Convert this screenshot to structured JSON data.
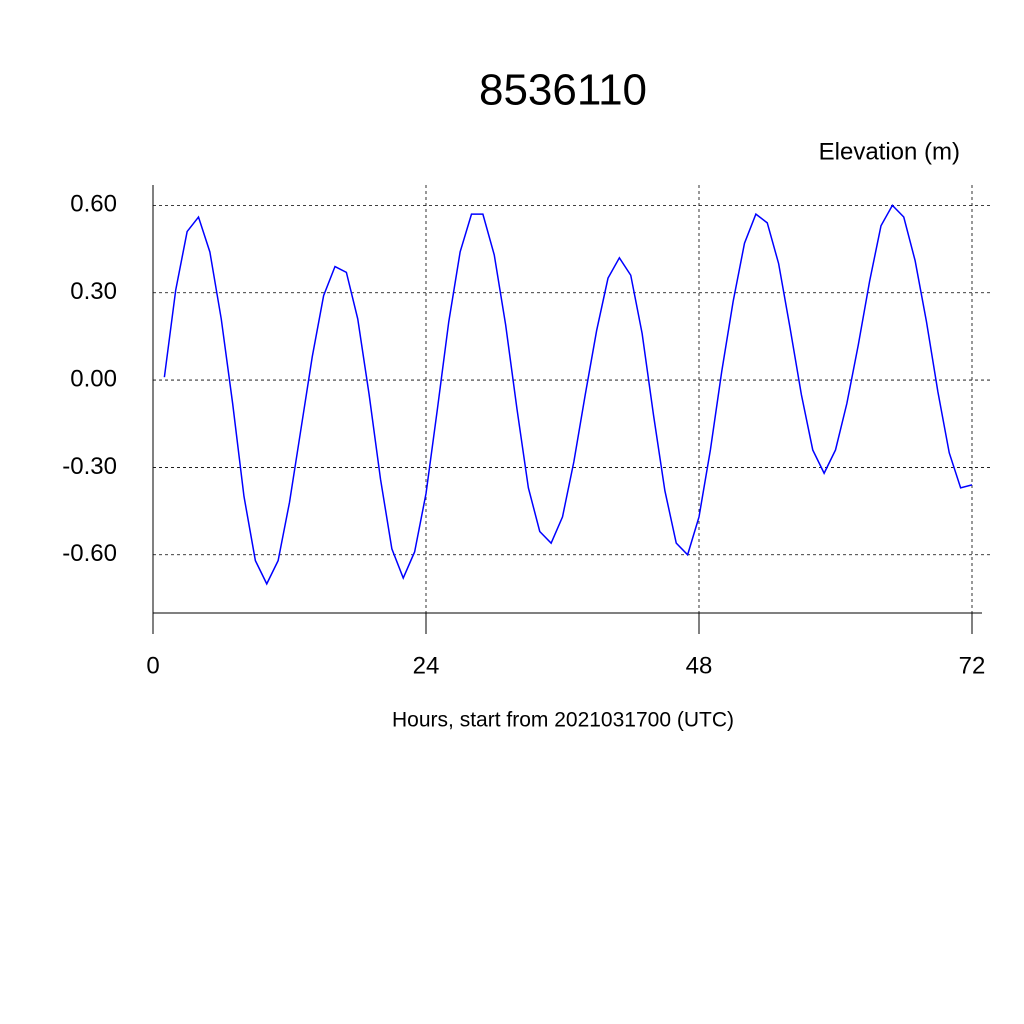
{
  "chart_data": {
    "type": "line",
    "title": "8536110",
    "y_label": "Elevation (m)",
    "x_label": "Hours, start from 2021031700 (UTC)",
    "x": [
      1,
      2,
      3,
      4,
      5,
      6,
      7,
      8,
      9,
      10,
      11,
      12,
      13,
      14,
      15,
      16,
      17,
      18,
      19,
      20,
      21,
      22,
      23,
      24,
      25,
      26,
      27,
      28,
      29,
      30,
      31,
      32,
      33,
      34,
      35,
      36,
      37,
      38,
      39,
      40,
      41,
      42,
      43,
      44,
      45,
      46,
      47,
      48,
      49,
      50,
      51,
      52,
      53,
      54,
      55,
      56,
      57,
      58,
      59,
      60,
      61,
      62,
      63,
      64,
      65,
      66,
      67,
      68,
      69,
      70,
      71,
      72
    ],
    "series": [
      {
        "color": "#0000ff",
        "values": [
          0.01,
          0.31,
          0.51,
          0.56,
          0.44,
          0.21,
          -0.08,
          -0.4,
          -0.62,
          -0.7,
          -0.62,
          -0.42,
          -0.17,
          0.08,
          0.29,
          0.39,
          0.37,
          0.21,
          -0.05,
          -0.34,
          -0.58,
          -0.68,
          -0.59,
          -0.39,
          -0.1,
          0.2,
          0.44,
          0.57,
          0.57,
          0.43,
          0.19,
          -0.1,
          -0.37,
          -0.52,
          -0.56,
          -0.47,
          -0.28,
          -0.05,
          0.17,
          0.35,
          0.42,
          0.36,
          0.16,
          -0.12,
          -0.38,
          -0.56,
          -0.6,
          -0.47,
          -0.24,
          0.03,
          0.27,
          0.47,
          0.57,
          0.54,
          0.4,
          0.18,
          -0.05,
          -0.24,
          -0.32,
          -0.24,
          -0.08,
          0.12,
          0.34,
          0.53,
          0.6,
          0.56,
          0.41,
          0.2,
          -0.04,
          -0.25,
          -0.37,
          -0.36
        ]
      }
    ],
    "xlim": [
      0,
      72
    ],
    "xticks": [
      0,
      24,
      48,
      72
    ],
    "ylim": [
      -0.8,
      0.67
    ],
    "yticks": [
      {
        "value": -0.6,
        "label": "-0.60"
      },
      {
        "value": -0.3,
        "label": "-0.30"
      },
      {
        "value": 0,
        "label": "0.00"
      },
      {
        "value": 0.3,
        "label": "0.30"
      },
      {
        "value": 0.6,
        "label": "0.60"
      }
    ],
    "grid": true
  }
}
